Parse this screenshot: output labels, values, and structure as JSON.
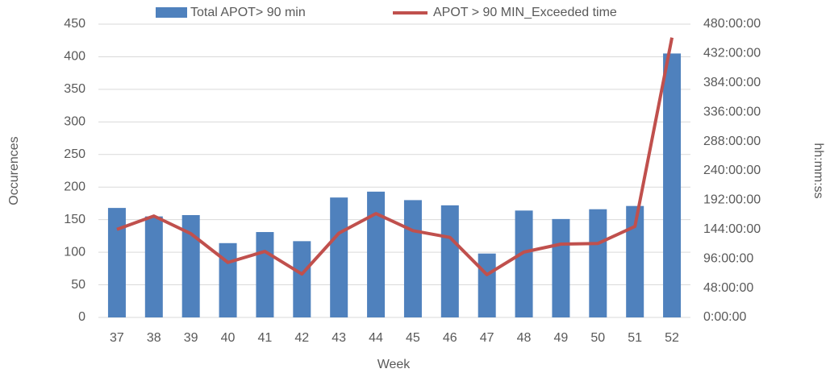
{
  "chart_data": {
    "type": "bar",
    "categories": [
      "37",
      "38",
      "39",
      "40",
      "41",
      "42",
      "43",
      "44",
      "45",
      "46",
      "47",
      "48",
      "49",
      "50",
      "51",
      "52"
    ],
    "series": [
      {
        "name": "Total APOT> 90 min",
        "color": "#4f81bd",
        "type": "bar",
        "values": [
          168,
          155,
          157,
          114,
          131,
          117,
          184,
          193,
          180,
          172,
          98,
          164,
          151,
          166,
          171,
          405
        ]
      },
      {
        "name": "APOT > 90 MIN_Exceeded time",
        "color": "#c0504d",
        "type": "line",
        "axis": "y2",
        "values": [
          144,
          166,
          137,
          90,
          108,
          71,
          138,
          170,
          142,
          131,
          70,
          107,
          120,
          121,
          149,
          458
        ]
      }
    ],
    "ylim": [
      0,
      450
    ],
    "yticks": [
      0,
      50,
      100,
      150,
      200,
      250,
      300,
      350,
      400,
      450
    ],
    "y2lim": [
      0,
      480
    ],
    "y2ticks": [
      {
        "value": 0,
        "label": "0:00:00"
      },
      {
        "value": 48,
        "label": "48:00:00"
      },
      {
        "value": 96,
        "label": "96:00:00"
      },
      {
        "value": 144,
        "label": "144:00:00"
      },
      {
        "value": 192,
        "label": "192:00:00"
      },
      {
        "value": 240,
        "label": "240:00:00"
      },
      {
        "value": 288,
        "label": "288:00:00"
      },
      {
        "value": 336,
        "label": "336:00:00"
      },
      {
        "value": 384,
        "label": "384:00:00"
      },
      {
        "value": 432,
        "label": "432:00:00"
      },
      {
        "value": 480,
        "label": "480:00:00"
      }
    ],
    "xlabel": "Week",
    "ylabel": "Occurences",
    "y2label": "hh:mm:ss",
    "grid": true,
    "legend": "top"
  }
}
